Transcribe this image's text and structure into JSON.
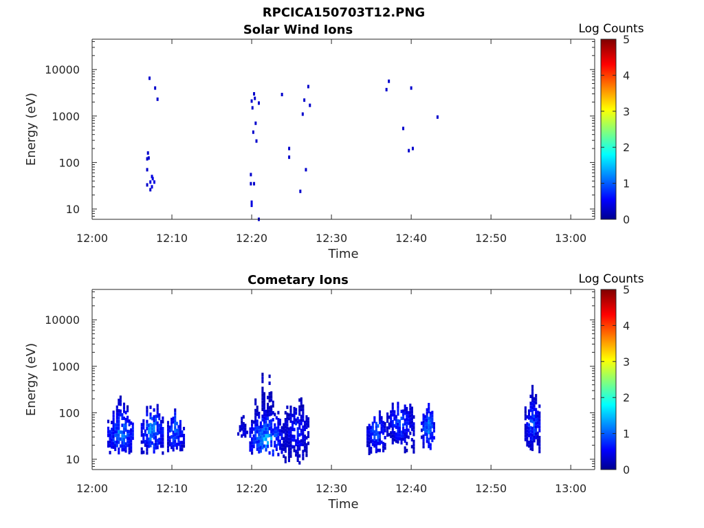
{
  "figure": {
    "title": "RPCICA150703T12.PNG"
  },
  "colors": {
    "axis": "#262626",
    "low": "#00008f",
    "mid": "#00ffff",
    "high": "#800000"
  },
  "chart_data": [
    {
      "type": "heatmap",
      "title": "Solar Wind Ions",
      "xlabel": "Time",
      "ylabel": "Energy (eV)",
      "x_ticks": [
        "12:00",
        "12:10",
        "12:20",
        "12:30",
        "12:40",
        "12:50",
        "13:00"
      ],
      "x_tick_minutes": [
        0,
        10,
        20,
        30,
        40,
        50,
        60
      ],
      "xlim_minutes": [
        0,
        63
      ],
      "y_scale": "log",
      "y_ticks": [
        "10",
        "100",
        "1000",
        "10000"
      ],
      "y_tick_values": [
        10,
        100,
        1000,
        10000
      ],
      "ylim": [
        6,
        45000
      ],
      "colorbar": {
        "label": "Log Counts",
        "ticks": [
          "0",
          "1",
          "2",
          "3",
          "4",
          "5"
        ],
        "range": [
          0,
          5
        ],
        "colormap": "jet"
      },
      "points": [
        {
          "t": 7.2,
          "e": 6500,
          "c": 0.3
        },
        {
          "t": 7.9,
          "e": 4000,
          "c": 0.3
        },
        {
          "t": 8.2,
          "e": 2300,
          "c": 0.3
        },
        {
          "t": 7.0,
          "e": 160,
          "c": 0.3
        },
        {
          "t": 7.1,
          "e": 125,
          "c": 0.3
        },
        {
          "t": 6.9,
          "e": 120,
          "c": 0.3
        },
        {
          "t": 6.9,
          "e": 70,
          "c": 0.3
        },
        {
          "t": 7.5,
          "e": 50,
          "c": 0.4
        },
        {
          "t": 7.6,
          "e": 45,
          "c": 0.4
        },
        {
          "t": 6.9,
          "e": 33,
          "c": 0.3
        },
        {
          "t": 7.3,
          "e": 38,
          "c": 0.4
        },
        {
          "t": 7.8,
          "e": 38,
          "c": 0.4
        },
        {
          "t": 7.5,
          "e": 30,
          "c": 0.4
        },
        {
          "t": 7.3,
          "e": 26,
          "c": 0.3
        },
        {
          "t": 20.0,
          "e": 2100,
          "c": 0.3
        },
        {
          "t": 20.3,
          "e": 3000,
          "c": 0.3
        },
        {
          "t": 20.4,
          "e": 2400,
          "c": 0.3
        },
        {
          "t": 20.9,
          "e": 1900,
          "c": 0.3
        },
        {
          "t": 20.1,
          "e": 1500,
          "c": 0.3
        },
        {
          "t": 20.5,
          "e": 700,
          "c": 0.3
        },
        {
          "t": 20.2,
          "e": 450,
          "c": 0.3
        },
        {
          "t": 20.6,
          "e": 290,
          "c": 0.3
        },
        {
          "t": 19.9,
          "e": 55,
          "c": 0.3
        },
        {
          "t": 19.9,
          "e": 35,
          "c": 0.3
        },
        {
          "t": 20.3,
          "e": 35,
          "c": 0.3
        },
        {
          "t": 20.0,
          "e": 14,
          "c": 0.4
        },
        {
          "t": 20.0,
          "e": 12,
          "c": 0.4
        },
        {
          "t": 20.9,
          "e": 6,
          "c": 0.3
        },
        {
          "t": 23.8,
          "e": 2900,
          "c": 0.3
        },
        {
          "t": 24.7,
          "e": 200,
          "c": 0.3
        },
        {
          "t": 24.7,
          "e": 130,
          "c": 0.3
        },
        {
          "t": 26.6,
          "e": 2200,
          "c": 0.3
        },
        {
          "t": 27.1,
          "e": 4300,
          "c": 0.3
        },
        {
          "t": 27.3,
          "e": 1700,
          "c": 0.3
        },
        {
          "t": 26.4,
          "e": 1100,
          "c": 0.3
        },
        {
          "t": 26.8,
          "e": 70,
          "c": 0.3
        },
        {
          "t": 26.1,
          "e": 24,
          "c": 0.3
        },
        {
          "t": 36.9,
          "e": 3700,
          "c": 0.3
        },
        {
          "t": 37.2,
          "e": 5600,
          "c": 0.3
        },
        {
          "t": 40.0,
          "e": 4000,
          "c": 0.3
        },
        {
          "t": 39.0,
          "e": 540,
          "c": 0.3
        },
        {
          "t": 39.7,
          "e": 180,
          "c": 0.3
        },
        {
          "t": 40.2,
          "e": 200,
          "c": 0.3
        },
        {
          "t": 43.3,
          "e": 950,
          "c": 0.3
        }
      ]
    },
    {
      "type": "heatmap",
      "title": "Cometary Ions",
      "xlabel": "Time",
      "ylabel": "Energy (eV)",
      "x_ticks": [
        "12:00",
        "12:10",
        "12:20",
        "12:30",
        "12:40",
        "12:50",
        "13:00"
      ],
      "x_tick_minutes": [
        0,
        10,
        20,
        30,
        40,
        50,
        60
      ],
      "xlim_minutes": [
        0,
        63
      ],
      "y_scale": "log",
      "y_ticks": [
        "10",
        "100",
        "1000",
        "10000"
      ],
      "y_tick_values": [
        10,
        100,
        1000,
        10000
      ],
      "ylim": [
        6,
        45000
      ],
      "colorbar": {
        "label": "Log Counts",
        "ticks": [
          "0",
          "1",
          "2",
          "3",
          "4",
          "5"
        ],
        "range": [
          0,
          5
        ],
        "colormap": "jet"
      },
      "bursts": [
        {
          "t0": 2.0,
          "t1": 5.3,
          "emin": 12,
          "emax": 350,
          "peak": 1.6,
          "core_e": 38
        },
        {
          "t0": 6.2,
          "t1": 8.9,
          "emin": 12,
          "emax": 350,
          "peak": 1.7,
          "core_e": 40
        },
        {
          "t0": 9.5,
          "t1": 11.5,
          "emin": 12,
          "emax": 180,
          "peak": 1.5,
          "core_e": 40
        },
        {
          "t0": 18.3,
          "t1": 19.6,
          "emin": 30,
          "emax": 150,
          "peak": 0.6,
          "core_e": 40
        },
        {
          "t0": 19.8,
          "t1": 23.8,
          "emin": 12,
          "emax": 1300,
          "peak": 1.8,
          "core_e": 28
        },
        {
          "t0": 24.0,
          "t1": 27.2,
          "emin": 8,
          "emax": 450,
          "peak": 1.0,
          "core_e": 40
        },
        {
          "t0": 34.5,
          "t1": 36.8,
          "emin": 12,
          "emax": 150,
          "peak": 1.3,
          "core_e": 40
        },
        {
          "t0": 37.0,
          "t1": 40.3,
          "emin": 14,
          "emax": 350,
          "peak": 1.2,
          "core_e": 60
        },
        {
          "t0": 41.3,
          "t1": 43.0,
          "emin": 17,
          "emax": 200,
          "peak": 1.6,
          "core_e": 45
        },
        {
          "t0": 54.3,
          "t1": 56.2,
          "emin": 12,
          "emax": 450,
          "peak": 1.3,
          "core_e": 60
        }
      ]
    }
  ]
}
